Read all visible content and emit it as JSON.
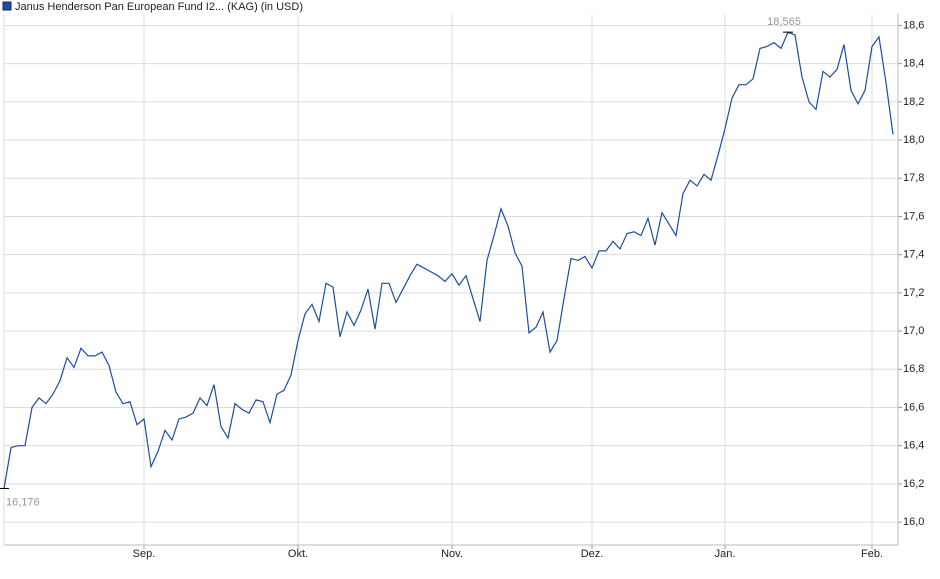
{
  "chart_data": {
    "type": "line",
    "title": "Janus Henderson Pan European Fund I2... (KAG)  (in USD)",
    "series": [
      {
        "name": "Janus Henderson Pan European Fund I2... (KAG)  (in USD)",
        "color": "#1f4e9c",
        "values": [
          16.176,
          16.39,
          16.4,
          16.4,
          16.6,
          16.65,
          16.62,
          16.67,
          16.74,
          16.86,
          16.81,
          16.91,
          16.87,
          16.87,
          16.89,
          16.82,
          16.68,
          16.62,
          16.63,
          16.51,
          16.54,
          16.29,
          16.37,
          16.48,
          16.43,
          16.54,
          16.55,
          16.57,
          16.65,
          16.61,
          16.72,
          16.5,
          16.44,
          16.62,
          16.59,
          16.57,
          16.64,
          16.63,
          16.52,
          16.67,
          16.69,
          16.77,
          16.95,
          17.09,
          17.14,
          17.05,
          17.25,
          17.23,
          16.97,
          17.1,
          17.03,
          17.11,
          17.22,
          17.01,
          17.25,
          17.25,
          17.15,
          17.22,
          17.29,
          17.35,
          17.33,
          17.31,
          17.29,
          17.26,
          17.3,
          17.24,
          17.29,
          17.17,
          17.05,
          17.37,
          17.5,
          17.64,
          17.55,
          17.41,
          17.34,
          16.99,
          17.02,
          17.1,
          16.89,
          16.95,
          17.17,
          17.38,
          17.37,
          17.39,
          17.33,
          17.42,
          17.42,
          17.47,
          17.43,
          17.51,
          17.52,
          17.5,
          17.59,
          17.45,
          17.62,
          17.56,
          17.5,
          17.72,
          17.79,
          17.76,
          17.82,
          17.79,
          17.92,
          18.06,
          18.22,
          18.29,
          18.29,
          18.32,
          18.48,
          18.49,
          18.51,
          18.48,
          18.565,
          18.55,
          18.33,
          18.2,
          18.16,
          18.36,
          18.33,
          18.37,
          18.5,
          18.26,
          18.19,
          18.26,
          18.49,
          18.54,
          18.3,
          18.03
        ]
      }
    ],
    "categories": [
      null,
      null,
      null,
      null,
      null,
      null,
      null,
      null,
      null,
      null,
      null,
      null,
      null,
      null,
      null,
      null,
      null,
      null,
      null,
      null,
      "Sep.",
      null,
      null,
      null,
      null,
      null,
      null,
      null,
      null,
      null,
      null,
      null,
      null,
      null,
      null,
      null,
      null,
      null,
      null,
      null,
      null,
      null,
      "Okt.",
      null,
      null,
      null,
      null,
      null,
      null,
      null,
      null,
      null,
      null,
      null,
      null,
      null,
      null,
      null,
      null,
      null,
      null,
      null,
      null,
      null,
      "Nov.",
      null,
      null,
      null,
      null,
      null,
      null,
      null,
      null,
      null,
      null,
      null,
      null,
      null,
      null,
      null,
      null,
      null,
      null,
      null,
      "Dez.",
      null,
      null,
      null,
      null,
      null,
      null,
      null,
      null,
      null,
      null,
      null,
      null,
      null,
      null,
      null,
      null,
      null,
      null,
      "Jan.",
      null,
      null,
      null,
      null,
      null,
      null,
      null,
      null,
      null,
      null,
      null,
      null,
      null,
      null,
      null,
      null,
      null,
      null,
      null,
      null,
      "Feb.",
      null,
      null,
      null
    ],
    "annotations": [
      {
        "text": "16,176"
      },
      {
        "text": "18,565"
      }
    ],
    "ylim": [
      15.88,
      18.66
    ],
    "yticks": [
      {
        "value": 16,
        "label": "16,0"
      },
      {
        "value": 16.2,
        "label": "16,2"
      },
      {
        "value": 16.4,
        "label": "16,4"
      },
      {
        "value": 16.6,
        "label": "16,6"
      },
      {
        "value": 16.8,
        "label": "16,8"
      },
      {
        "value": 17,
        "label": "17,0"
      },
      {
        "value": 17.2,
        "label": "17,2"
      },
      {
        "value": 17.4,
        "label": "17,4"
      },
      {
        "value": 17.6,
        "label": "17,6"
      },
      {
        "value": 17.8,
        "label": "17,8"
      },
      {
        "value": 18,
        "label": "18,0"
      },
      {
        "value": 18.2,
        "label": "18,2"
      },
      {
        "value": 18.4,
        "label": "18,4"
      },
      {
        "value": 18.6,
        "label": "18,6"
      }
    ],
    "grid": true
  }
}
